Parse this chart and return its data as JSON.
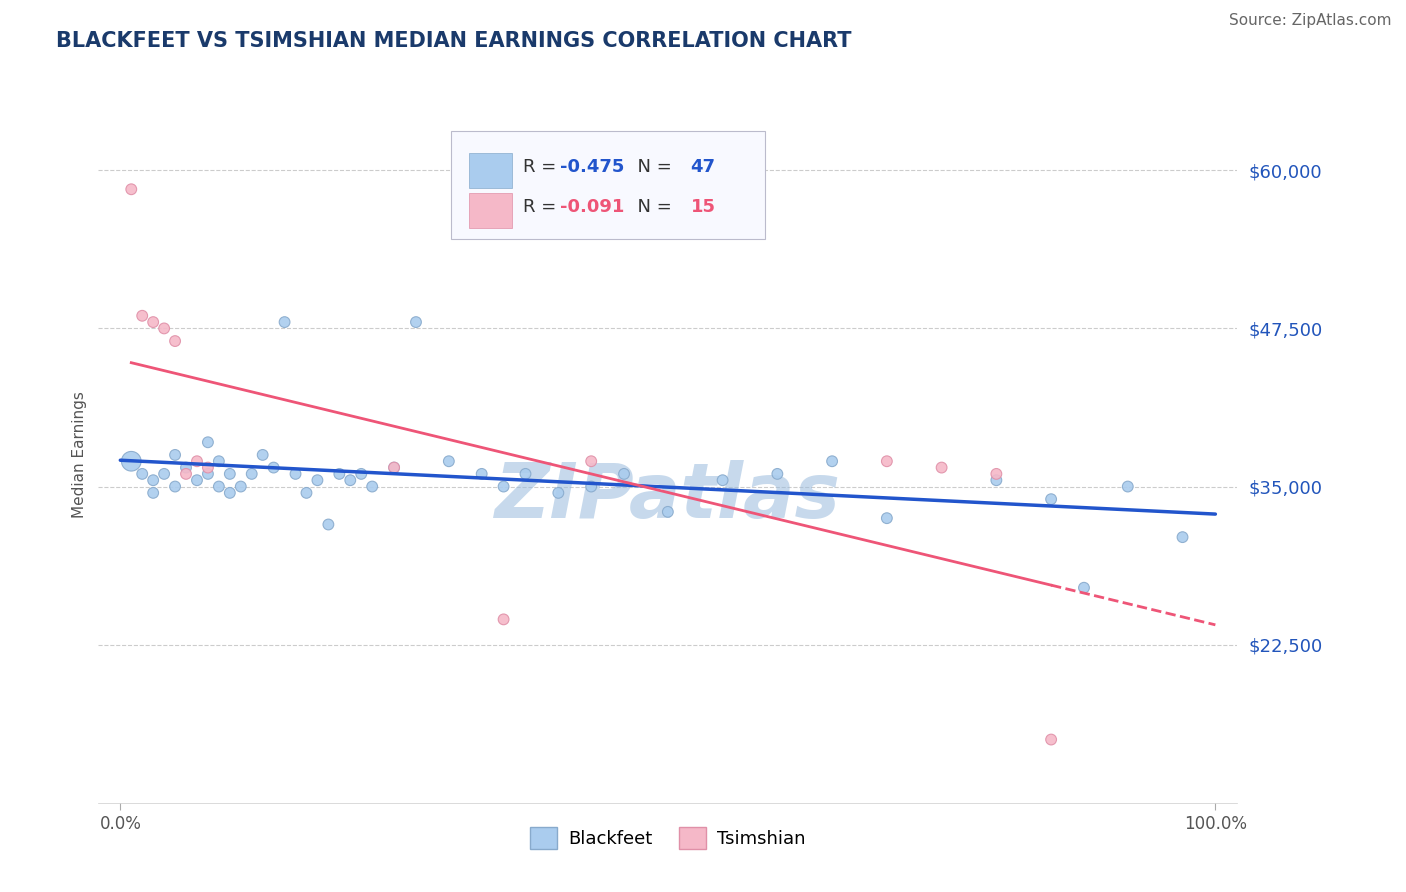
{
  "title": "BLACKFEET VS TSIMSHIAN MEDIAN EARNINGS CORRELATION CHART",
  "source": "Source: ZipAtlas.com",
  "ylabel": "Median Earnings",
  "xlim": [
    -2,
    102
  ],
  "ylim": [
    10000,
    65000
  ],
  "yticks": [
    22500,
    35000,
    47500,
    60000
  ],
  "ytick_labels": [
    "$22,500",
    "$35,000",
    "$47,500",
    "$60,000"
  ],
  "xticks": [
    0.0,
    100.0
  ],
  "xtick_labels": [
    "0.0%",
    "100.0%"
  ],
  "title_color": "#1a3a6b",
  "title_fontsize": 15,
  "source_fontsize": 11,
  "source_color": "#666666",
  "ylabel_color": "#555555",
  "ylabel_fontsize": 11,
  "ytick_color": "#2255bb",
  "xtick_color": "#555555",
  "grid_color": "#cccccc",
  "watermark": "ZIPatlas",
  "watermark_color": "#99bbdd",
  "blackfeet_color": "#aaccee",
  "tsimshian_color": "#f5b8c8",
  "blackfeet_edge_color": "#88aacc",
  "tsimshian_edge_color": "#e090a8",
  "blackfeet_line_color": "#2255cc",
  "tsimshian_line_color": "#ee5577",
  "blackfeet_R": -0.475,
  "blackfeet_N": 47,
  "tsimshian_R": -0.091,
  "tsimshian_N": 15,
  "legend_box_color": "#f8f9ff",
  "legend_border_color": "#bbbbcc",
  "bf_x": [
    1,
    2,
    3,
    3,
    4,
    5,
    5,
    6,
    7,
    8,
    8,
    9,
    9,
    10,
    10,
    11,
    12,
    13,
    14,
    15,
    16,
    17,
    18,
    19,
    20,
    21,
    22,
    23,
    25,
    27,
    30,
    33,
    35,
    37,
    40,
    43,
    46,
    50,
    55,
    60,
    65,
    70,
    80,
    85,
    88,
    92,
    97
  ],
  "bf_y": [
    37000,
    36000,
    35500,
    34500,
    36000,
    37500,
    35000,
    36500,
    35500,
    38500,
    36000,
    37000,
    35000,
    34500,
    36000,
    35000,
    36000,
    37500,
    36500,
    48000,
    36000,
    34500,
    35500,
    32000,
    36000,
    35500,
    36000,
    35000,
    36500,
    48000,
    37000,
    36000,
    35000,
    36000,
    34500,
    35000,
    36000,
    33000,
    35500,
    36000,
    37000,
    32500,
    35500,
    34000,
    27000,
    35000,
    31000
  ],
  "bf_sizes": [
    200,
    60,
    60,
    60,
    60,
    60,
    60,
    60,
    60,
    60,
    60,
    60,
    60,
    60,
    60,
    60,
    60,
    60,
    60,
    60,
    60,
    60,
    60,
    60,
    60,
    60,
    60,
    60,
    60,
    60,
    60,
    60,
    60,
    60,
    60,
    60,
    60,
    60,
    60,
    60,
    60,
    60,
    60,
    60,
    60,
    60,
    60
  ],
  "ts_x": [
    1,
    2,
    3,
    4,
    5,
    6,
    7,
    8,
    25,
    35,
    43,
    70,
    75,
    80,
    85
  ],
  "ts_y": [
    58500,
    48500,
    48000,
    47500,
    46500,
    36000,
    37000,
    36500,
    36500,
    24500,
    37000,
    37000,
    36500,
    36000,
    15000
  ],
  "ts_sizes": [
    60,
    60,
    60,
    60,
    60,
    60,
    60,
    60,
    60,
    60,
    60,
    60,
    60,
    60,
    60
  ]
}
